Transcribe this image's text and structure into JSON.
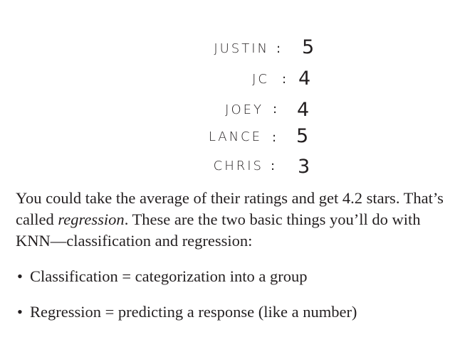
{
  "ratings": [
    {
      "name": "JUSTIN",
      "colon": ":",
      "value": "5"
    },
    {
      "name": "JC",
      "colon": ":",
      "value": "4"
    },
    {
      "name": "JOEY",
      "colon": ":",
      "value": "4"
    },
    {
      "name": "LANCE",
      "colon": ":",
      "value": "5"
    },
    {
      "name": "CHRIS",
      "colon": ":",
      "value": "3"
    }
  ],
  "paragraph": {
    "before_em": "You could take the average of their ratings and get 4.2 stars. That’s called ",
    "em": "regression",
    "after_em": ". These are the two basic things you’ll do with KNN—classification and regression:"
  },
  "bullets": [
    {
      "dot": "•",
      "text": "Classification = categorization into a group"
    },
    {
      "dot": "•",
      "text": "Regression = predicting a response (like a number)"
    }
  ]
}
